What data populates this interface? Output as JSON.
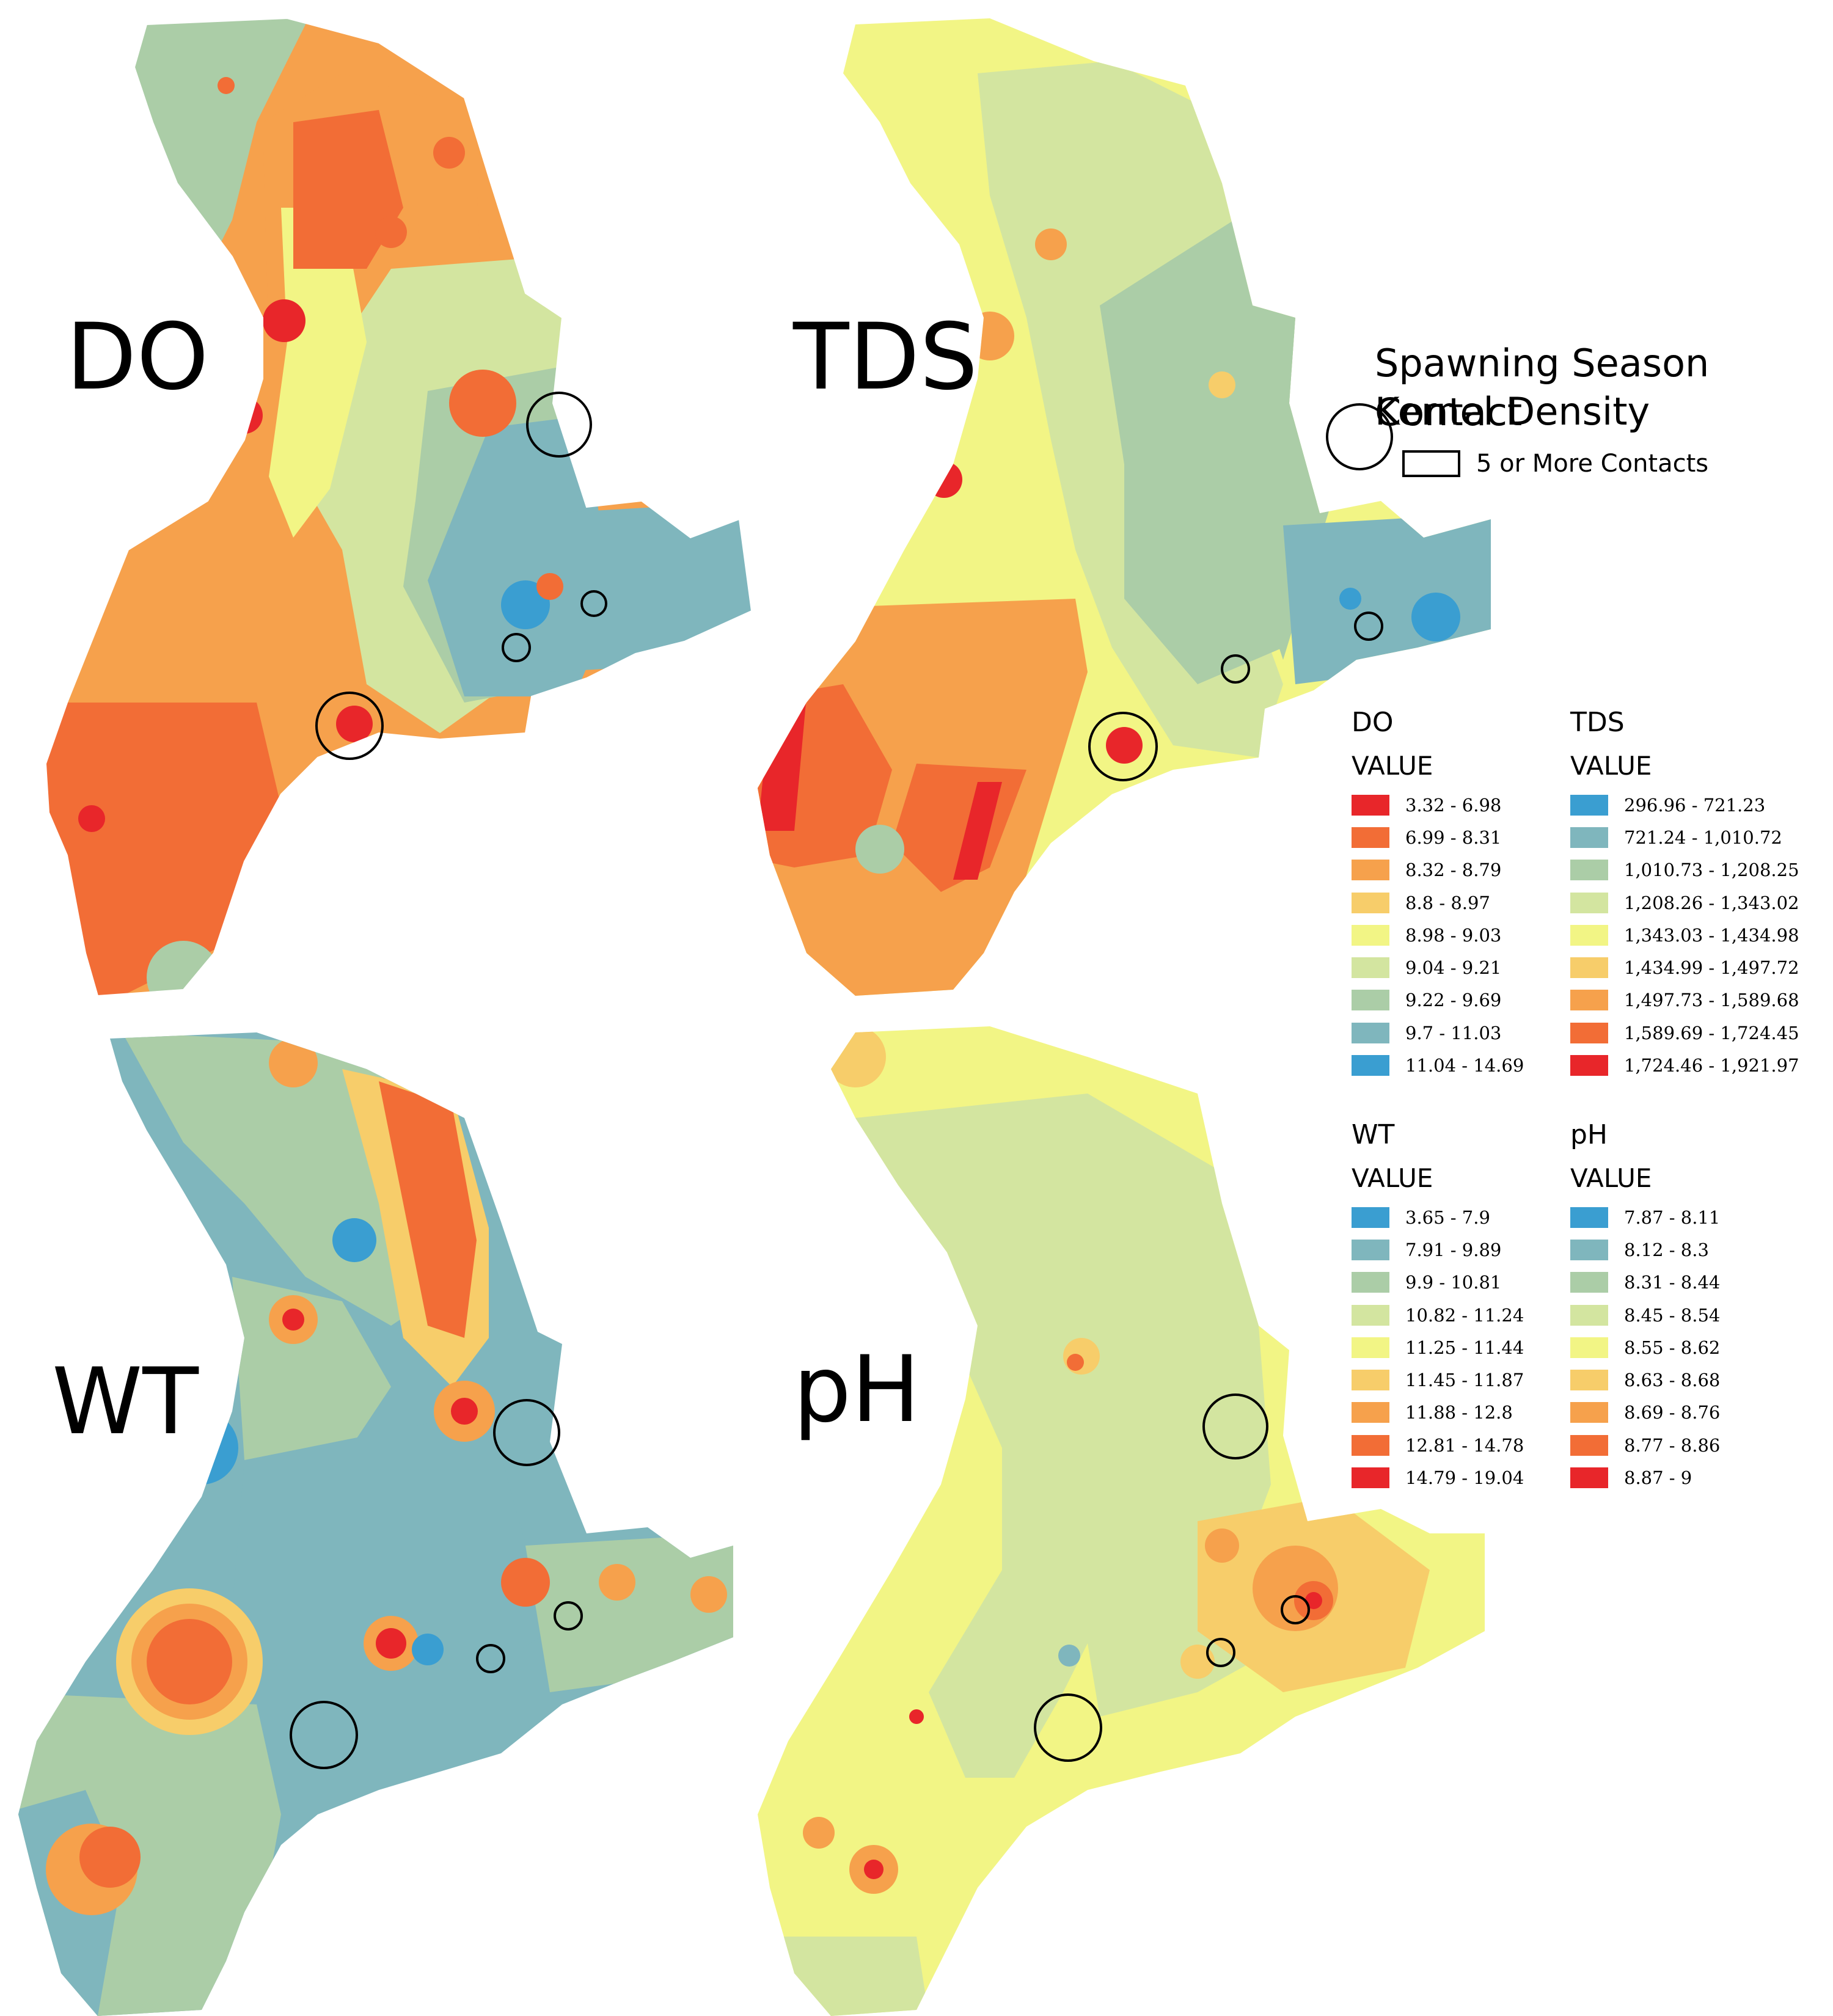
{
  "legend": {
    "title_line1": "Spawning Season Contact",
    "title_line2": "Kernel Density",
    "key_label": "5 or More Contacts"
  },
  "panels": [
    {
      "id": "DO",
      "label": "DO",
      "palette": "ramp"
    },
    {
      "id": "TDS",
      "label": "TDS",
      "palette": "ramp"
    },
    {
      "id": "WT",
      "label": "WT",
      "palette": "ramp"
    },
    {
      "id": "pH",
      "label": "pH",
      "palette": "ramp"
    }
  ],
  "legends": [
    {
      "name": "DO",
      "value_label": "VALUE",
      "classes": [
        {
          "range": "3.32 - 6.98",
          "color": "#e8262a"
        },
        {
          "range": "6.99 - 8.31",
          "color": "#f26d36"
        },
        {
          "range": "8.32 - 8.79",
          "color": "#f6a14c"
        },
        {
          "range": "8.8 - 8.97",
          "color": "#f7cd6a"
        },
        {
          "range": "8.98 - 9.03",
          "color": "#f2f585"
        },
        {
          "range": "9.04 - 9.21",
          "color": "#d3e5a0"
        },
        {
          "range": "9.22 - 9.69",
          "color": "#abcda7"
        },
        {
          "range": "9.7 - 11.03",
          "color": "#7fb6bd"
        },
        {
          "range": "11.04 - 14.69",
          "color": "#3a9ed1"
        }
      ]
    },
    {
      "name": "TDS",
      "value_label": "VALUE",
      "classes": [
        {
          "range": "296.96 - 721.23",
          "color": "#3a9ed1"
        },
        {
          "range": "721.24 - 1,010.72",
          "color": "#7fb6bd"
        },
        {
          "range": "1,010.73 - 1,208.25",
          "color": "#abcda7"
        },
        {
          "range": "1,208.26 - 1,343.02",
          "color": "#d3e5a0"
        },
        {
          "range": "1,343.03 - 1,434.98",
          "color": "#f2f585"
        },
        {
          "range": "1,434.99 - 1,497.72",
          "color": "#f7cd6a"
        },
        {
          "range": "1,497.73 - 1,589.68",
          "color": "#f6a14c"
        },
        {
          "range": "1,589.69 - 1,724.45",
          "color": "#f26d36"
        },
        {
          "range": "1,724.46 - 1,921.97",
          "color": "#e8262a"
        }
      ]
    },
    {
      "name": "WT",
      "value_label": "VALUE",
      "classes": [
        {
          "range": "3.65 - 7.9",
          "color": "#3a9ed1"
        },
        {
          "range": "7.91 - 9.89",
          "color": "#7fb6bd"
        },
        {
          "range": "9.9 - 10.81",
          "color": "#abcda7"
        },
        {
          "range": "10.82 - 11.24",
          "color": "#d3e5a0"
        },
        {
          "range": "11.25 - 11.44",
          "color": "#f2f585"
        },
        {
          "range": "11.45 - 11.87",
          "color": "#f7cd6a"
        },
        {
          "range": "11.88 - 12.8",
          "color": "#f6a14c"
        },
        {
          "range": "12.81 - 14.78",
          "color": "#f26d36"
        },
        {
          "range": "14.79 - 19.04",
          "color": "#e8262a"
        }
      ]
    },
    {
      "name": "pH",
      "value_label": "VALUE",
      "classes": [
        {
          "range": "7.87 - 8.11",
          "color": "#3a9ed1"
        },
        {
          "range": "8.12 - 8.3",
          "color": "#7fb6bd"
        },
        {
          "range": "8.31 - 8.44",
          "color": "#abcda7"
        },
        {
          "range": "8.45 - 8.54",
          "color": "#d3e5a0"
        },
        {
          "range": "8.55 - 8.62",
          "color": "#f2f585"
        },
        {
          "range": "8.63 - 8.68",
          "color": "#f7cd6a"
        },
        {
          "range": "8.69 - 8.76",
          "color": "#f6a14c"
        },
        {
          "range": "8.77 - 8.86",
          "color": "#f26d36"
        },
        {
          "range": "8.87 - 9",
          "color": "#e8262a"
        }
      ]
    }
  ]
}
